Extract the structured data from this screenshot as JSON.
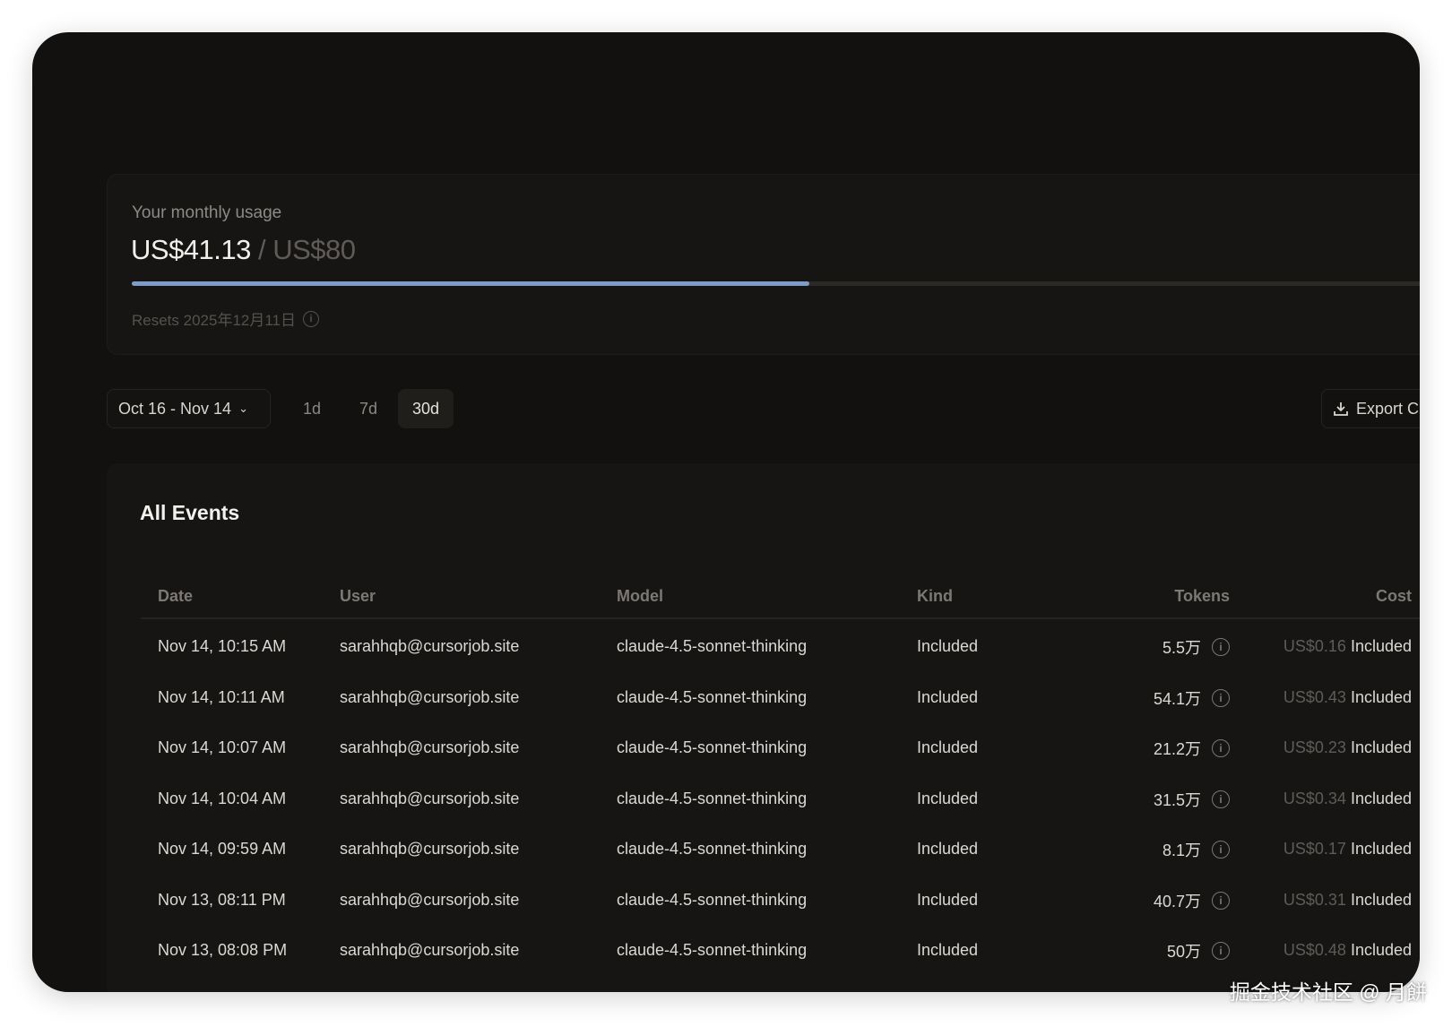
{
  "usage": {
    "label": "Your monthly usage",
    "used": "US$41.13",
    "limit": "/ US$80",
    "progress_percent": 51.4,
    "resets": "Resets 2025年12月11日",
    "accent": "#7e9cc7"
  },
  "controls": {
    "date_range": "Oct 16 - Nov 14",
    "ranges": [
      "1d",
      "7d",
      "30d"
    ],
    "active_range": "30d",
    "export_label": "Export C"
  },
  "events": {
    "title": "All Events",
    "columns": [
      "Date",
      "User",
      "Model",
      "Kind",
      "Tokens",
      "Cost"
    ],
    "rows": [
      {
        "date": "Nov 14, 10:15 AM",
        "user": "sarahhqb@cursorjob.site",
        "model": "claude-4.5-sonnet-thinking",
        "kind": "Included",
        "tokens": "5.5万",
        "cost": "US$0.16",
        "cost_status": "Included"
      },
      {
        "date": "Nov 14, 10:11 AM",
        "user": "sarahhqb@cursorjob.site",
        "model": "claude-4.5-sonnet-thinking",
        "kind": "Included",
        "tokens": "54.1万",
        "cost": "US$0.43",
        "cost_status": "Included"
      },
      {
        "date": "Nov 14, 10:07 AM",
        "user": "sarahhqb@cursorjob.site",
        "model": "claude-4.5-sonnet-thinking",
        "kind": "Included",
        "tokens": "21.2万",
        "cost": "US$0.23",
        "cost_status": "Included"
      },
      {
        "date": "Nov 14, 10:04 AM",
        "user": "sarahhqb@cursorjob.site",
        "model": "claude-4.5-sonnet-thinking",
        "kind": "Included",
        "tokens": "31.5万",
        "cost": "US$0.34",
        "cost_status": "Included"
      },
      {
        "date": "Nov 14, 09:59 AM",
        "user": "sarahhqb@cursorjob.site",
        "model": "claude-4.5-sonnet-thinking",
        "kind": "Included",
        "tokens": "8.1万",
        "cost": "US$0.17",
        "cost_status": "Included"
      },
      {
        "date": "Nov 13, 08:11 PM",
        "user": "sarahhqb@cursorjob.site",
        "model": "claude-4.5-sonnet-thinking",
        "kind": "Included",
        "tokens": "40.7万",
        "cost": "US$0.31",
        "cost_status": "Included"
      },
      {
        "date": "Nov 13, 08:08 PM",
        "user": "sarahhqb@cursorjob.site",
        "model": "claude-4.5-sonnet-thinking",
        "kind": "Included",
        "tokens": "50万",
        "cost": "US$0.48",
        "cost_status": "Included"
      }
    ]
  },
  "watermark": "掘金技术社区 @ 月餅"
}
